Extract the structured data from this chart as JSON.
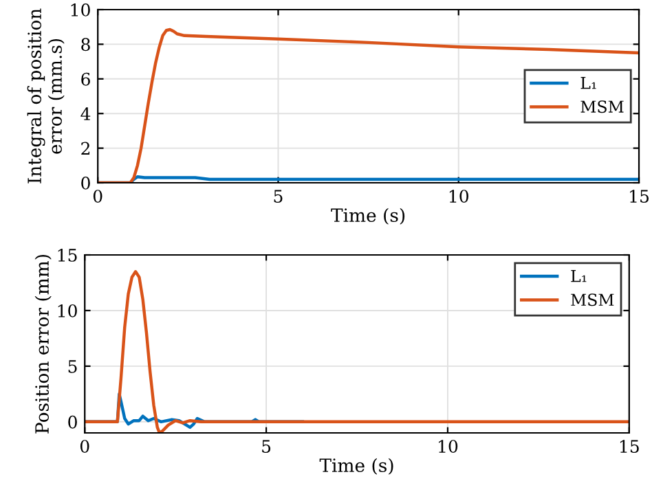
{
  "chart_data": [
    {
      "type": "line",
      "xlabel": "Time (s)",
      "ylabel": "Integral of position\nerror (mm.s)",
      "xlim": [
        0,
        15
      ],
      "xticks": [
        0,
        5,
        10,
        15
      ],
      "ylim": [
        0,
        10
      ],
      "yticks": [
        0,
        2,
        4,
        6,
        8,
        10
      ],
      "grid": true,
      "legend": "right",
      "series": [
        {
          "name": "L₁",
          "color": "#0072bd",
          "x": [
            0,
            0.9,
            1.0,
            1.1,
            1.3,
            2.0,
            2.7,
            2.9,
            3.1,
            5,
            10,
            15
          ],
          "values": [
            0,
            0,
            0.2,
            0.35,
            0.3,
            0.3,
            0.3,
            0.25,
            0.2,
            0.2,
            0.2,
            0.2
          ]
        },
        {
          "name": "MSM",
          "color": "#d95319",
          "x": [
            0,
            0.9,
            1.0,
            1.1,
            1.2,
            1.3,
            1.4,
            1.5,
            1.6,
            1.7,
            1.8,
            1.9,
            2.0,
            2.1,
            2.2,
            2.4,
            3,
            5,
            7.5,
            10,
            12.5,
            15
          ],
          "values": [
            0,
            0,
            0.3,
            1.0,
            2.0,
            3.3,
            4.6,
            5.8,
            6.9,
            7.8,
            8.5,
            8.8,
            8.85,
            8.75,
            8.6,
            8.5,
            8.45,
            8.3,
            8.1,
            7.85,
            7.7,
            7.5
          ]
        }
      ]
    },
    {
      "type": "line",
      "xlabel": "Time (s)",
      "ylabel": "Position error (mm)",
      "xlim": [
        0,
        15
      ],
      "xticks": [
        0,
        5,
        10,
        15
      ],
      "ylim": [
        -1,
        15
      ],
      "yticks": [
        0,
        5,
        10,
        15
      ],
      "grid": true,
      "legend": "top right",
      "series": [
        {
          "name": "L₁",
          "color": "#0072bd",
          "x": [
            0,
            0.9,
            0.95,
            1.0,
            1.1,
            1.2,
            1.35,
            1.5,
            1.6,
            1.75,
            1.9,
            2.1,
            2.4,
            2.6,
            2.8,
            2.9,
            3.0,
            3.1,
            3.3,
            4.6,
            4.7,
            4.8,
            6
          ],
          "values": [
            0,
            0,
            2.5,
            1.8,
            0.3,
            -0.2,
            0.1,
            0.1,
            0.5,
            0.1,
            0.3,
            0.0,
            0.2,
            0.1,
            -0.3,
            -0.5,
            -0.2,
            0.3,
            0.0,
            0.0,
            0.2,
            0.0,
            0.0
          ]
        },
        {
          "name": "MSM",
          "color": "#d95319",
          "x": [
            0,
            0.9,
            1.0,
            1.1,
            1.2,
            1.3,
            1.4,
            1.5,
            1.6,
            1.7,
            1.8,
            1.9,
            2.0,
            2.06,
            2.15,
            2.3,
            2.5,
            2.7,
            2.9,
            3.2,
            5,
            10,
            15
          ],
          "values": [
            0,
            0,
            4.0,
            8.5,
            11.5,
            13.0,
            13.5,
            13.0,
            11.0,
            8.0,
            4.5,
            1.5,
            -0.5,
            -1.0,
            -0.8,
            -0.3,
            0.1,
            -0.1,
            0.1,
            0.0,
            0.0,
            0.0,
            0.0
          ]
        }
      ]
    }
  ]
}
